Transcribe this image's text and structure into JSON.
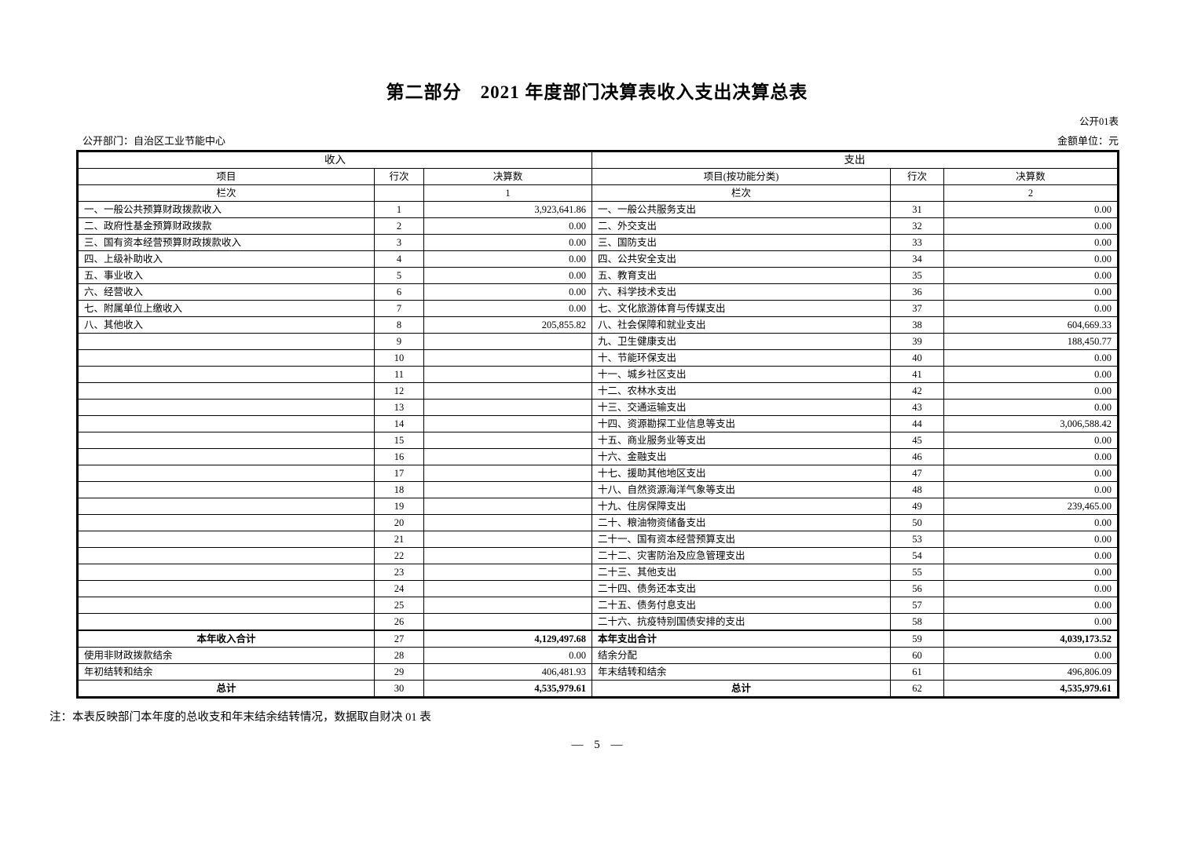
{
  "title": "第二部分　2021 年度部门决算表收入支出决算总表",
  "table_label": "公开01表",
  "meta": {
    "department": "公开部门：自治区工业节能中心",
    "unit": "金额单位：元"
  },
  "table": {
    "income_header": "收入",
    "expense_header": "支出",
    "columns": {
      "item": "项目",
      "row_no": "行次",
      "amount": "决算数",
      "item_func": "项目(按功能分类)",
      "lanci": "栏次",
      "income_col_no": "1",
      "expense_col_no": "2"
    },
    "rows": [
      {
        "left": {
          "item": "一、一般公共预算财政拨款收入",
          "no": "1",
          "amount": "3,923,641.86"
        },
        "right": {
          "item": "一、一般公共服务支出",
          "no": "31",
          "amount": "0.00"
        }
      },
      {
        "left": {
          "item": "二、政府性基金预算财政拨款",
          "no": "2",
          "amount": "0.00"
        },
        "right": {
          "item": "二、外交支出",
          "no": "32",
          "amount": "0.00"
        }
      },
      {
        "left": {
          "item": "三、国有资本经营预算财政拨款收入",
          "no": "3",
          "amount": "0.00"
        },
        "right": {
          "item": "三、国防支出",
          "no": "33",
          "amount": "0.00"
        }
      },
      {
        "left": {
          "item": "四、上级补助收入",
          "no": "4",
          "amount": "0.00"
        },
        "right": {
          "item": "四、公共安全支出",
          "no": "34",
          "amount": "0.00"
        }
      },
      {
        "left": {
          "item": "五、事业收入",
          "no": "5",
          "amount": "0.00"
        },
        "right": {
          "item": "五、教育支出",
          "no": "35",
          "amount": "0.00"
        }
      },
      {
        "left": {
          "item": "六、经营收入",
          "no": "6",
          "amount": "0.00"
        },
        "right": {
          "item": "六、科学技术支出",
          "no": "36",
          "amount": "0.00"
        }
      },
      {
        "left": {
          "item": "七、附属单位上缴收入",
          "no": "7",
          "amount": "0.00"
        },
        "right": {
          "item": "七、文化旅游体育与传媒支出",
          "no": "37",
          "amount": "0.00"
        }
      },
      {
        "left": {
          "item": "八、其他收入",
          "no": "8",
          "amount": "205,855.82"
        },
        "right": {
          "item": "八、社会保障和就业支出",
          "no": "38",
          "amount": "604,669.33"
        }
      },
      {
        "left": {
          "item": "",
          "no": "9",
          "amount": ""
        },
        "right": {
          "item": "九、卫生健康支出",
          "no": "39",
          "amount": "188,450.77"
        }
      },
      {
        "left": {
          "item": "",
          "no": "10",
          "amount": ""
        },
        "right": {
          "item": "十、节能环保支出",
          "no": "40",
          "amount": "0.00"
        }
      },
      {
        "left": {
          "item": "",
          "no": "11",
          "amount": ""
        },
        "right": {
          "item": "十一、城乡社区支出",
          "no": "41",
          "amount": "0.00"
        }
      },
      {
        "left": {
          "item": "",
          "no": "12",
          "amount": ""
        },
        "right": {
          "item": "十二、农林水支出",
          "no": "42",
          "amount": "0.00"
        }
      },
      {
        "left": {
          "item": "",
          "no": "13",
          "amount": ""
        },
        "right": {
          "item": "十三、交通运输支出",
          "no": "43",
          "amount": "0.00"
        }
      },
      {
        "left": {
          "item": "",
          "no": "14",
          "amount": ""
        },
        "right": {
          "item": "十四、资源勘探工业信息等支出",
          "no": "44",
          "amount": "3,006,588.42"
        }
      },
      {
        "left": {
          "item": "",
          "no": "15",
          "amount": ""
        },
        "right": {
          "item": "十五、商业服务业等支出",
          "no": "45",
          "amount": "0.00"
        }
      },
      {
        "left": {
          "item": "",
          "no": "16",
          "amount": ""
        },
        "right": {
          "item": "十六、金融支出",
          "no": "46",
          "amount": "0.00"
        }
      },
      {
        "left": {
          "item": "",
          "no": "17",
          "amount": ""
        },
        "right": {
          "item": "十七、援助其他地区支出",
          "no": "47",
          "amount": "0.00"
        }
      },
      {
        "left": {
          "item": "",
          "no": "18",
          "amount": ""
        },
        "right": {
          "item": "十八、自然资源海洋气象等支出",
          "no": "48",
          "amount": "0.00"
        }
      },
      {
        "left": {
          "item": "",
          "no": "19",
          "amount": ""
        },
        "right": {
          "item": "十九、住房保障支出",
          "no": "49",
          "amount": "239,465.00"
        }
      },
      {
        "left": {
          "item": "",
          "no": "20",
          "amount": ""
        },
        "right": {
          "item": "二十、粮油物资储备支出",
          "no": "50",
          "amount": "0.00"
        }
      },
      {
        "left": {
          "item": "",
          "no": "21",
          "amount": ""
        },
        "right": {
          "item": "二十一、国有资本经营预算支出",
          "no": "53",
          "amount": "0.00"
        }
      },
      {
        "left": {
          "item": "",
          "no": "22",
          "amount": ""
        },
        "right": {
          "item": "二十二、灾害防治及应急管理支出",
          "no": "54",
          "amount": "0.00"
        }
      },
      {
        "left": {
          "item": "",
          "no": "23",
          "amount": ""
        },
        "right": {
          "item": "二十三、其他支出",
          "no": "55",
          "amount": "0.00"
        }
      },
      {
        "left": {
          "item": "",
          "no": "24",
          "amount": ""
        },
        "right": {
          "item": "二十四、债务还本支出",
          "no": "56",
          "amount": "0.00"
        }
      },
      {
        "left": {
          "item": "",
          "no": "25",
          "amount": ""
        },
        "right": {
          "item": "二十五、债务付息支出",
          "no": "57",
          "amount": "0.00"
        }
      },
      {
        "left": {
          "item": "",
          "no": "26",
          "amount": ""
        },
        "right": {
          "item": "二十六、抗疫特别国债安排的支出",
          "no": "58",
          "amount": "0.00"
        }
      }
    ],
    "summary_rows": [
      {
        "top_border": true,
        "left": {
          "item": "本年收入合计",
          "no": "27",
          "amount": "4,129,497.68",
          "item_align": "center",
          "bold": true
        },
        "right": {
          "item": "本年支出合计",
          "no": "59",
          "amount": "4,039,173.52",
          "item_align": "left",
          "bold": true,
          "no_valign": "top"
        }
      },
      {
        "left": {
          "item": "使用非财政拨款结余",
          "no": "28",
          "amount": "0.00",
          "indent": true
        },
        "right": {
          "item": "结余分配",
          "no": "60",
          "amount": "0.00",
          "indent": true
        }
      },
      {
        "left": {
          "item": "年初结转和结余",
          "no": "29",
          "amount": "406,481.93",
          "indent": true
        },
        "right": {
          "item": "年末结转和结余",
          "no": "61",
          "amount": "496,806.09",
          "indent": true
        }
      },
      {
        "left": {
          "item": "总计",
          "no": "30",
          "amount": "4,535,979.61",
          "item_align": "center",
          "bold": true
        },
        "right": {
          "item": "总计",
          "no": "62",
          "amount": "4,535,979.61",
          "item_align": "center",
          "bold": true
        }
      }
    ]
  },
  "note": "注：本表反映部门本年度的总收支和年末结余结转情况，数据取自财决 01 表",
  "page_number": "— 5 —",
  "colors": {
    "ink": "#000000",
    "paper": "#ffffff"
  }
}
